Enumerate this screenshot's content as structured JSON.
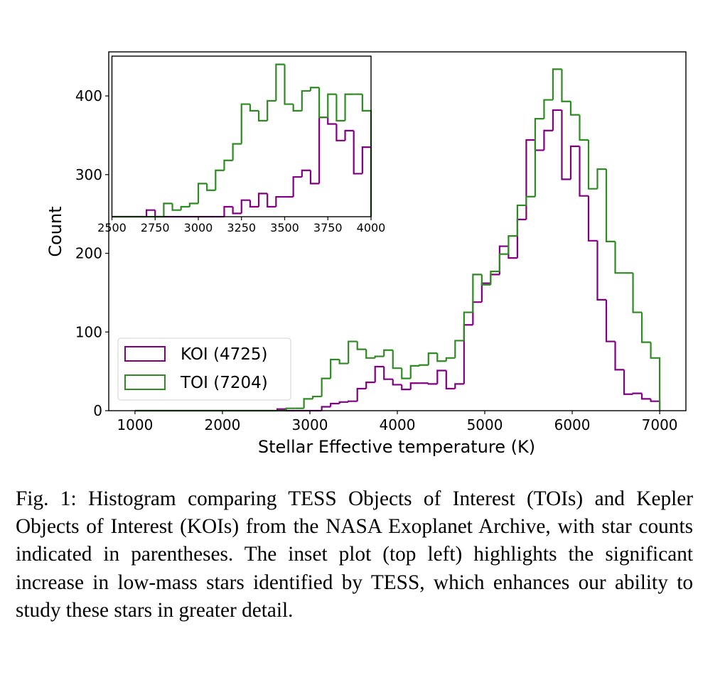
{
  "chart_data": [
    {
      "type": "histogram-step",
      "xlabel": "Stellar Effective temperature (K)",
      "ylabel": "Count",
      "xlim": [
        700,
        7300
      ],
      "ylim": [
        0,
        456
      ],
      "xticks": [
        1000,
        2000,
        3000,
        4000,
        5000,
        6000,
        7000
      ],
      "yticks": [
        0,
        100,
        200,
        300,
        400
      ],
      "grid": false,
      "legend": "lower-left",
      "bins": {
        "range": [
          1000,
          7000
        ],
        "count": 59
      },
      "series": [
        {
          "name": "KOI (4725)",
          "color": "#800080",
          "values": [
            0,
            0,
            0,
            0,
            0,
            0,
            0,
            0,
            0,
            0,
            0,
            0,
            0,
            0,
            0,
            0,
            2,
            0,
            0,
            0,
            0,
            5,
            9,
            11,
            12,
            28,
            36,
            56,
            40,
            33,
            27,
            35,
            35,
            34,
            51,
            28,
            34,
            109,
            138,
            162,
            173,
            209,
            194,
            243,
            344,
            331,
            356,
            382,
            294,
            336,
            273,
            216,
            141,
            88,
            52,
            21,
            22,
            15,
            12
          ]
        },
        {
          "name": "TOI (7204)",
          "color": "#2e8b22",
          "values": [
            0,
            0,
            0,
            0,
            0,
            0,
            0,
            0,
            0,
            0,
            0,
            0,
            0,
            0,
            0,
            0,
            0,
            3,
            3,
            15,
            18,
            41,
            65,
            60,
            88,
            78,
            67,
            69,
            77,
            54,
            41,
            57,
            58,
            73,
            63,
            67,
            89,
            125,
            173,
            160,
            177,
            199,
            222,
            261,
            272,
            371,
            395,
            434,
            393,
            376,
            344,
            282,
            307,
            215,
            175,
            175,
            125,
            87,
            67
          ]
        }
      ]
    },
    {
      "type": "histogram-step",
      "position": "inset top-left",
      "xlim": [
        2500,
        4000
      ],
      "ylim": [
        0,
        48.5
      ],
      "xticks": [
        2500,
        2750,
        3000,
        3250,
        3500,
        3750,
        4000
      ],
      "bins": {
        "range": [
          2500,
          4000
        ],
        "count": 30
      },
      "series": [
        {
          "color": "#800080",
          "values": [
            0,
            0,
            0,
            0,
            2,
            0,
            0,
            0,
            0,
            0,
            0,
            0,
            0,
            3,
            1,
            5,
            3,
            7,
            3,
            6,
            6,
            12,
            14,
            10,
            30,
            28,
            23,
            26,
            13,
            21
          ]
        },
        {
          "color": "#2e8b22",
          "values": [
            0,
            0,
            0,
            0,
            0,
            0,
            4,
            2,
            3,
            4,
            10,
            8,
            14,
            17,
            22,
            34,
            32,
            29,
            35,
            46,
            34,
            32,
            38,
            39,
            30,
            37,
            29,
            37,
            37,
            32
          ]
        }
      ]
    }
  ],
  "caption": "Fig. 1: Histogram comparing TESS Objects of Interest (TOIs) and Kepler Objects of Interest (KOIs) from the NASA Exoplanet Archive, with star counts indicated in parentheses. The inset plot (top left) highlights the significant increase in low-mass stars identified by TESS, which enhances our ability to study these stars in greater detail."
}
